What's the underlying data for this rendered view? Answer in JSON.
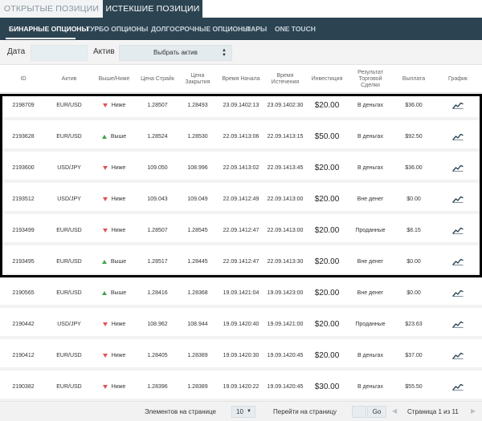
{
  "tabs": {
    "open": "ОТКРЫТЫЕ ПОЗИЦИИ",
    "expired": "ИСТЕКШИЕ ПОЗИЦИИ"
  },
  "nav": [
    "БИНАРНЫЕ ОПЦИОНЫ",
    "ТУРБО ОПЦИОНЫ",
    "ДОЛГОСРОЧНЫЕ ОПЦИОНЫ",
    "ПАРЫ",
    "ONE TOUCH"
  ],
  "filters": {
    "date_label": "Дата",
    "asset_label": "Актив",
    "asset_select": "Выбрать актив",
    "arrows": "▲▼"
  },
  "columns": [
    "ID",
    "Актив",
    "Выше/Ниже",
    "Цена Страйк",
    "Цена Закрытия",
    "Время Начала",
    "Время Истечения",
    "Инвестиция",
    "Результат Торговой Сделки",
    "Выплата",
    "График"
  ],
  "rows": [
    {
      "id": "2198709",
      "asset": "EUR/USD",
      "dir": "Ниже",
      "strike": "1.28507",
      "close": "1.28493",
      "start_date": "23.09.14",
      "start_time": "02:13",
      "exp_date": "23.09.14",
      "exp_time": "02:30",
      "invest": "$20.00",
      "result": "В деньгах",
      "payout": "$36.00"
    },
    {
      "id": "2193628",
      "asset": "EUR/USD",
      "dir": "Выше",
      "strike": "1.28524",
      "close": "1.28530",
      "start_date": "22.09.14",
      "start_time": "13:06",
      "exp_date": "22.09.14",
      "exp_time": "13:15",
      "invest": "$50.00",
      "result": "В деньгах",
      "payout": "$92.50"
    },
    {
      "id": "2193600",
      "asset": "USD/JPY",
      "dir": "Ниже",
      "strike": "109.050",
      "close": "108.996",
      "start_date": "22.09.14",
      "start_time": "13:02",
      "exp_date": "22.09.14",
      "exp_time": "13:45",
      "invest": "$20.00",
      "result": "В деньгах",
      "payout": "$36.00"
    },
    {
      "id": "2193512",
      "asset": "USD/JPY",
      "dir": "Ниже",
      "strike": "109.043",
      "close": "109.049",
      "start_date": "22.09.14",
      "start_time": "12:49",
      "exp_date": "22.09.14",
      "exp_time": "13:00",
      "invest": "$20.00",
      "result": "Вне денег",
      "payout": "$0.00"
    },
    {
      "id": "2193499",
      "asset": "EUR/USD",
      "dir": "Ниже",
      "strike": "1.28507",
      "close": "1.28545",
      "start_date": "22.09.14",
      "start_time": "12:47",
      "exp_date": "22.09.14",
      "exp_time": "13:00",
      "invest": "$20.00",
      "result": "Проданные",
      "payout": "$8.15"
    },
    {
      "id": "2193495",
      "asset": "EUR/USD",
      "dir": "Выше",
      "strike": "1.28517",
      "close": "1.28445",
      "start_date": "22.09.14",
      "start_time": "12:47",
      "exp_date": "22.09.14",
      "exp_time": "13:30",
      "invest": "$20.00",
      "result": "Вне денег",
      "payout": "$0.00"
    },
    {
      "id": "2190565",
      "asset": "EUR/USD",
      "dir": "Выше",
      "strike": "1.28416",
      "close": "1.28368",
      "start_date": "19.09.14",
      "start_time": "21:04",
      "exp_date": "19.09.14",
      "exp_time": "23:00",
      "invest": "$20.00",
      "result": "Вне денег",
      "payout": "$0.00"
    },
    {
      "id": "2190442",
      "asset": "USD/JPY",
      "dir": "Ниже",
      "strike": "108.962",
      "close": "108.944",
      "start_date": "19.09.14",
      "start_time": "20:40",
      "exp_date": "19.09.14",
      "exp_time": "21:00",
      "invest": "$20.00",
      "result": "Проданные",
      "payout": "$23.63"
    },
    {
      "id": "2190412",
      "asset": "EUR/USD",
      "dir": "Ниже",
      "strike": "1.28405",
      "close": "1.28389",
      "start_date": "19.09.14",
      "start_time": "20:30",
      "exp_date": "19.09.14",
      "exp_time": "20:45",
      "invest": "$20.00",
      "result": "В деньгах",
      "payout": "$37.00"
    },
    {
      "id": "2190382",
      "asset": "EUR/USD",
      "dir": "Ниже",
      "strike": "1.28396",
      "close": "1.28389",
      "start_date": "19.09.14",
      "start_time": "20:22",
      "exp_date": "19.09.14",
      "exp_time": "20:45",
      "invest": "$30.00",
      "result": "В деньгах",
      "payout": "$55.50"
    }
  ],
  "pager": {
    "per_page_label": "Элементов на странице",
    "per_page": "10",
    "goto_label": "Перейти на страницу",
    "go": "Go",
    "page_info": "Страница 1 из 11",
    "select_arrow": "▼",
    "prev": "◀",
    "next": "▶"
  },
  "colors": {
    "header_bg": "#2c4452",
    "down": "#e05252",
    "up": "#3fa34d",
    "highlight": "#000000"
  },
  "icons": {
    "graph": "trend-chart-icon",
    "up": "triangle-up-icon",
    "down": "triangle-down-icon"
  }
}
